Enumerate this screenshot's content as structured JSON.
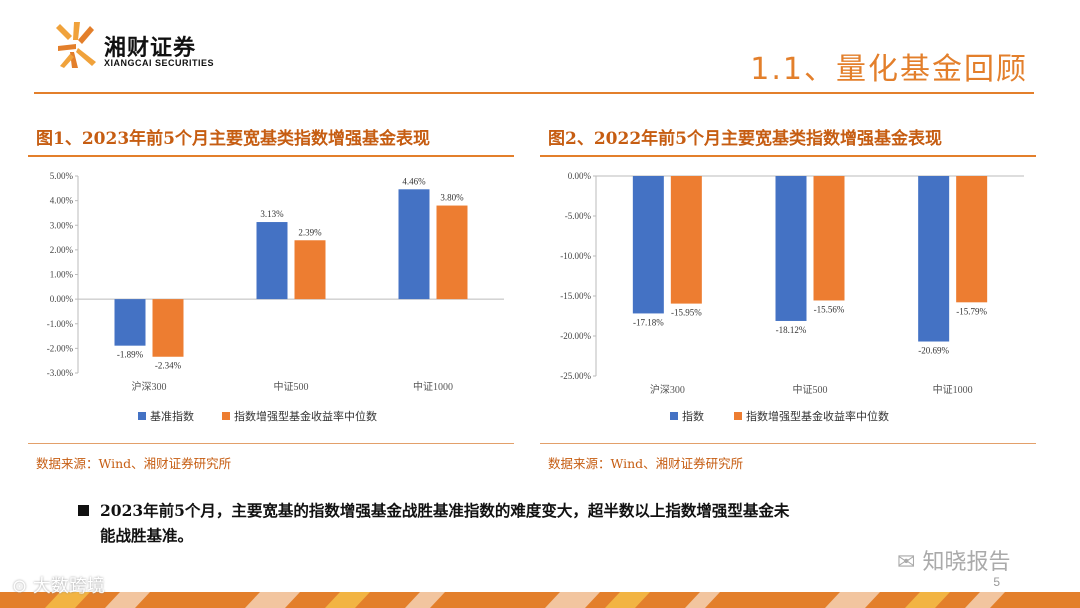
{
  "header": {
    "company_cn": "湘财证券",
    "company_en": "XIANGCAI SECURITIES",
    "page_title": "1.1、量化基金回顾"
  },
  "colors": {
    "accent": "#e37f2b",
    "blue": "#4472c4",
    "orange": "#ed7d31",
    "title": "#c65d12"
  },
  "figures": [
    {
      "title": "图1、2023年前5个月主要宽基类指数增强基金表现",
      "source": "数据来源：Wind、湘财证券研究所"
    },
    {
      "title": "图2、2022年前5个月主要宽基类指数增强基金表现",
      "source": "数据来源：Wind、湘财证券研究所"
    }
  ],
  "chart_data": [
    {
      "type": "bar",
      "categories": [
        "沪深300",
        "中证500",
        "中证1000"
      ],
      "series": [
        {
          "name": "基准指数",
          "values": [
            -1.89,
            3.13,
            4.46
          ],
          "labels": [
            "-1.89%",
            "3.13%",
            "4.46%"
          ]
        },
        {
          "name": "指数增强型基金收益率中位数",
          "values": [
            -2.34,
            2.39,
            3.8
          ],
          "labels": [
            "-2.34%",
            "2.39%",
            "3.80%"
          ]
        }
      ],
      "y_ticks": [
        "5.00%",
        "4.00%",
        "3.00%",
        "2.00%",
        "1.00%",
        "0.00%",
        "-1.00%",
        "-2.00%",
        "-3.00%"
      ],
      "ylim": [
        -3,
        5
      ],
      "legend_position": "bottom",
      "grid": false
    },
    {
      "type": "bar",
      "categories": [
        "沪深300",
        "中证500",
        "中证1000"
      ],
      "series": [
        {
          "name": "指数",
          "values": [
            -17.18,
            -18.12,
            -20.69
          ],
          "labels": [
            "-17.18%",
            "-18.12%",
            "-20.69%"
          ]
        },
        {
          "name": "指数增强型基金收益率中位数",
          "values": [
            -15.95,
            -15.56,
            -15.79
          ],
          "labels": [
            "-15.95%",
            "-15.56%",
            "-15.79%"
          ]
        }
      ],
      "y_ticks": [
        "0.00%",
        "-5.00%",
        "-10.00%",
        "-15.00%",
        "-20.00%",
        "-25.00%"
      ],
      "ylim": [
        -25,
        0
      ],
      "legend_position": "bottom",
      "grid": false
    }
  ],
  "bullet": {
    "line1": "2023年前5个月，主要宽基的指数增强基金战胜基准指数的难度变大，超半数以上指数增强型基金未",
    "line2": "能战胜基准。"
  },
  "footer": {
    "page_number": "5",
    "watermark_right": "知晓报告",
    "watermark_left": "大数跨境"
  }
}
